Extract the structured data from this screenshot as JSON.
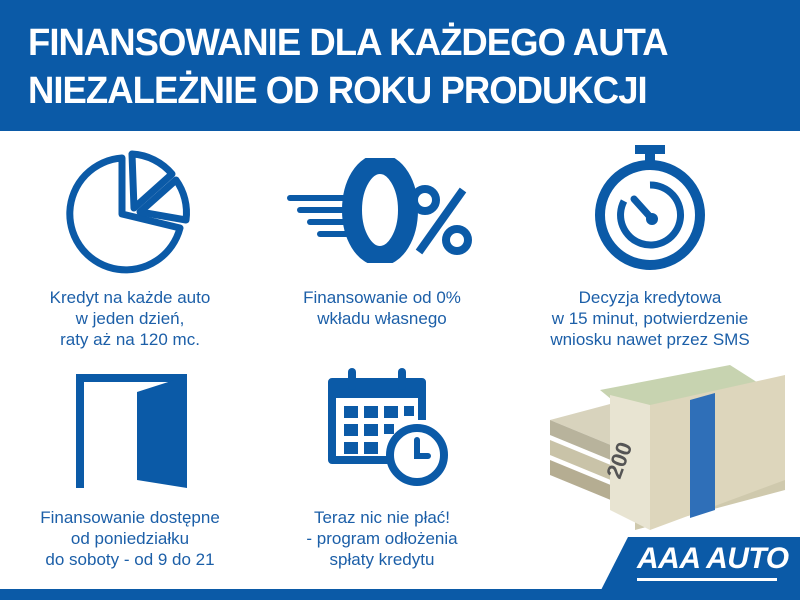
{
  "header": {
    "line1": "FINANSOWANIE DLA KAŻDEGO AUTA",
    "line2": "NIEZALEŻNIE OD ROKU PRODUKCJI"
  },
  "features": [
    {
      "icon": "pie-chart-icon",
      "lines": [
        "Kredyt na każde auto",
        "w jeden dzień,",
        "raty aż na 120 mc."
      ]
    },
    {
      "icon": "zero-percent-icon",
      "lines": [
        "Finansowanie od 0%",
        "wkładu własnego"
      ]
    },
    {
      "icon": "stopwatch-icon",
      "lines": [
        "Decyzja kredytowa",
        "w 15 minut, potwierdzenie",
        "wniosku nawet przez SMS"
      ]
    },
    {
      "icon": "door-icon",
      "lines": [
        "Finansowanie dostępne",
        "od poniedziałku",
        "do soboty - od 9 do 21"
      ]
    },
    {
      "icon": "calendar-clock-icon",
      "lines": [
        "Teraz nic nie płać!",
        "- program odłożenia",
        "spłaty kredytu"
      ]
    },
    {
      "icon": "money-stack-image"
    }
  ],
  "logo": {
    "text": "AAA AUTO"
  },
  "colors": {
    "brand_blue": "#0b5aa7",
    "text_blue": "#1c5fa8"
  }
}
